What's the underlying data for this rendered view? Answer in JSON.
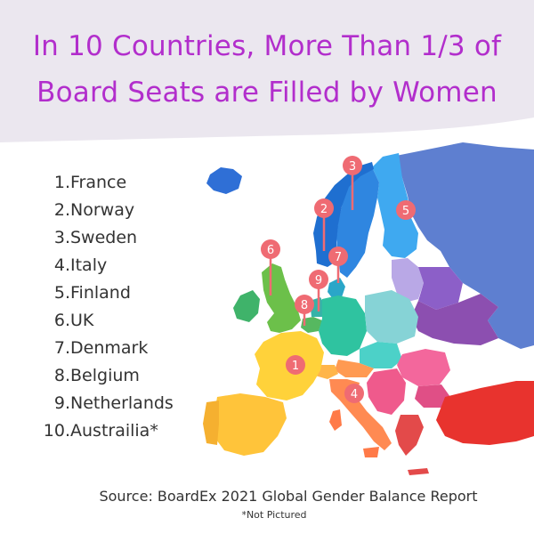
{
  "title": {
    "line1": "In 10 Countries, More Than 1/3 of",
    "line2": "Board Seats  are Filled by Women"
  },
  "countries": [
    {
      "num": "1.",
      "name": "France"
    },
    {
      "num": "2.",
      "name": "Norway"
    },
    {
      "num": "3.",
      "name": "Sweden"
    },
    {
      "num": "4.",
      "name": "Italy"
    },
    {
      "num": "5.",
      "name": "Finland"
    },
    {
      "num": "6.",
      "name": "UK"
    },
    {
      "num": "7.",
      "name": "Denmark"
    },
    {
      "num": "8.",
      "name": "Belgium"
    },
    {
      "num": "9.",
      "name": "Netherlands"
    },
    {
      "num": "10.",
      "name": "Austrailia*"
    }
  ],
  "markers": [
    "1",
    "2",
    "3",
    "4",
    "5",
    "6",
    "7",
    "8",
    "9"
  ],
  "source": "Source: BoardEx 2021 Global Gender Balance Report",
  "note": "*Not Pictured",
  "colors": {
    "title": "#b22ecc",
    "banner": "#ebe7ef",
    "marker": "#ef6b73"
  }
}
